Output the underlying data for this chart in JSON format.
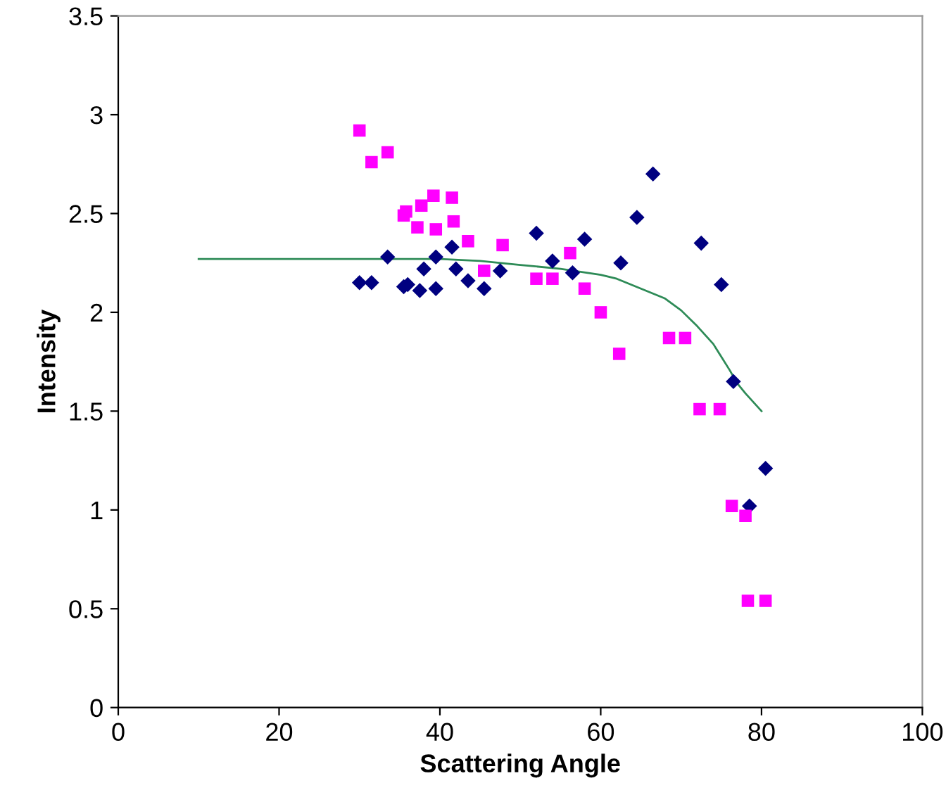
{
  "chart_data": {
    "type": "scatter",
    "xlabel": "Scattering Angle",
    "ylabel": "Intensity",
    "xlim": [
      0,
      100
    ],
    "ylim": [
      0,
      3.5
    ],
    "xticks": [
      0,
      20,
      40,
      60,
      80,
      100
    ],
    "yticks": [
      0,
      0.5,
      1,
      1.5,
      2,
      2.5,
      3,
      3.5
    ],
    "grid": false,
    "legend": false,
    "series": [
      {
        "marker": "diamond",
        "color": "#000080",
        "x": [
          30,
          31.5,
          33.5,
          35.5,
          36,
          37.5,
          38,
          39.5,
          39.5,
          41.5,
          42,
          43.5,
          45.5,
          47.5,
          52,
          54,
          56.5,
          58,
          62.5,
          64.5,
          66.5,
          72.5,
          75,
          76.5,
          78.5,
          80.5
        ],
        "values": [
          2.15,
          2.15,
          2.28,
          2.13,
          2.14,
          2.11,
          2.22,
          2.28,
          2.12,
          2.33,
          2.22,
          2.16,
          2.12,
          2.21,
          2.4,
          2.26,
          2.2,
          2.37,
          2.25,
          2.48,
          2.7,
          2.35,
          2.14,
          1.65,
          1.02,
          1.21
        ]
      },
      {
        "marker": "square",
        "color": "#ff00ff",
        "x": [
          30,
          31.5,
          33.5,
          35.5,
          35.8,
          37.2,
          37.7,
          39.2,
          39.5,
          41.5,
          41.7,
          43.5,
          45.5,
          47.8,
          52,
          54,
          56.2,
          58,
          60,
          62.3,
          68.5,
          70.5,
          72.3,
          74.8,
          76.3,
          78,
          78.3,
          80.5
        ],
        "values": [
          2.92,
          2.76,
          2.81,
          2.49,
          2.51,
          2.43,
          2.54,
          2.59,
          2.42,
          2.58,
          2.46,
          2.36,
          2.21,
          2.34,
          2.17,
          2.17,
          2.3,
          2.12,
          2.0,
          1.79,
          1.87,
          1.87,
          1.51,
          1.51,
          1.02,
          0.97,
          0.54,
          0.54
        ]
      },
      {
        "type": "line",
        "marker": "none",
        "line_style": "solid",
        "color": "#2e8b57",
        "x": [
          10,
          20,
          30,
          40,
          45,
          50,
          55,
          60,
          62,
          65,
          68,
          70,
          72,
          74,
          76,
          77,
          78,
          80
        ],
        "values": [
          2.27,
          2.27,
          2.27,
          2.27,
          2.26,
          2.24,
          2.22,
          2.19,
          2.17,
          2.12,
          2.07,
          2.01,
          1.93,
          1.84,
          1.71,
          1.64,
          1.59,
          1.5
        ]
      }
    ]
  }
}
